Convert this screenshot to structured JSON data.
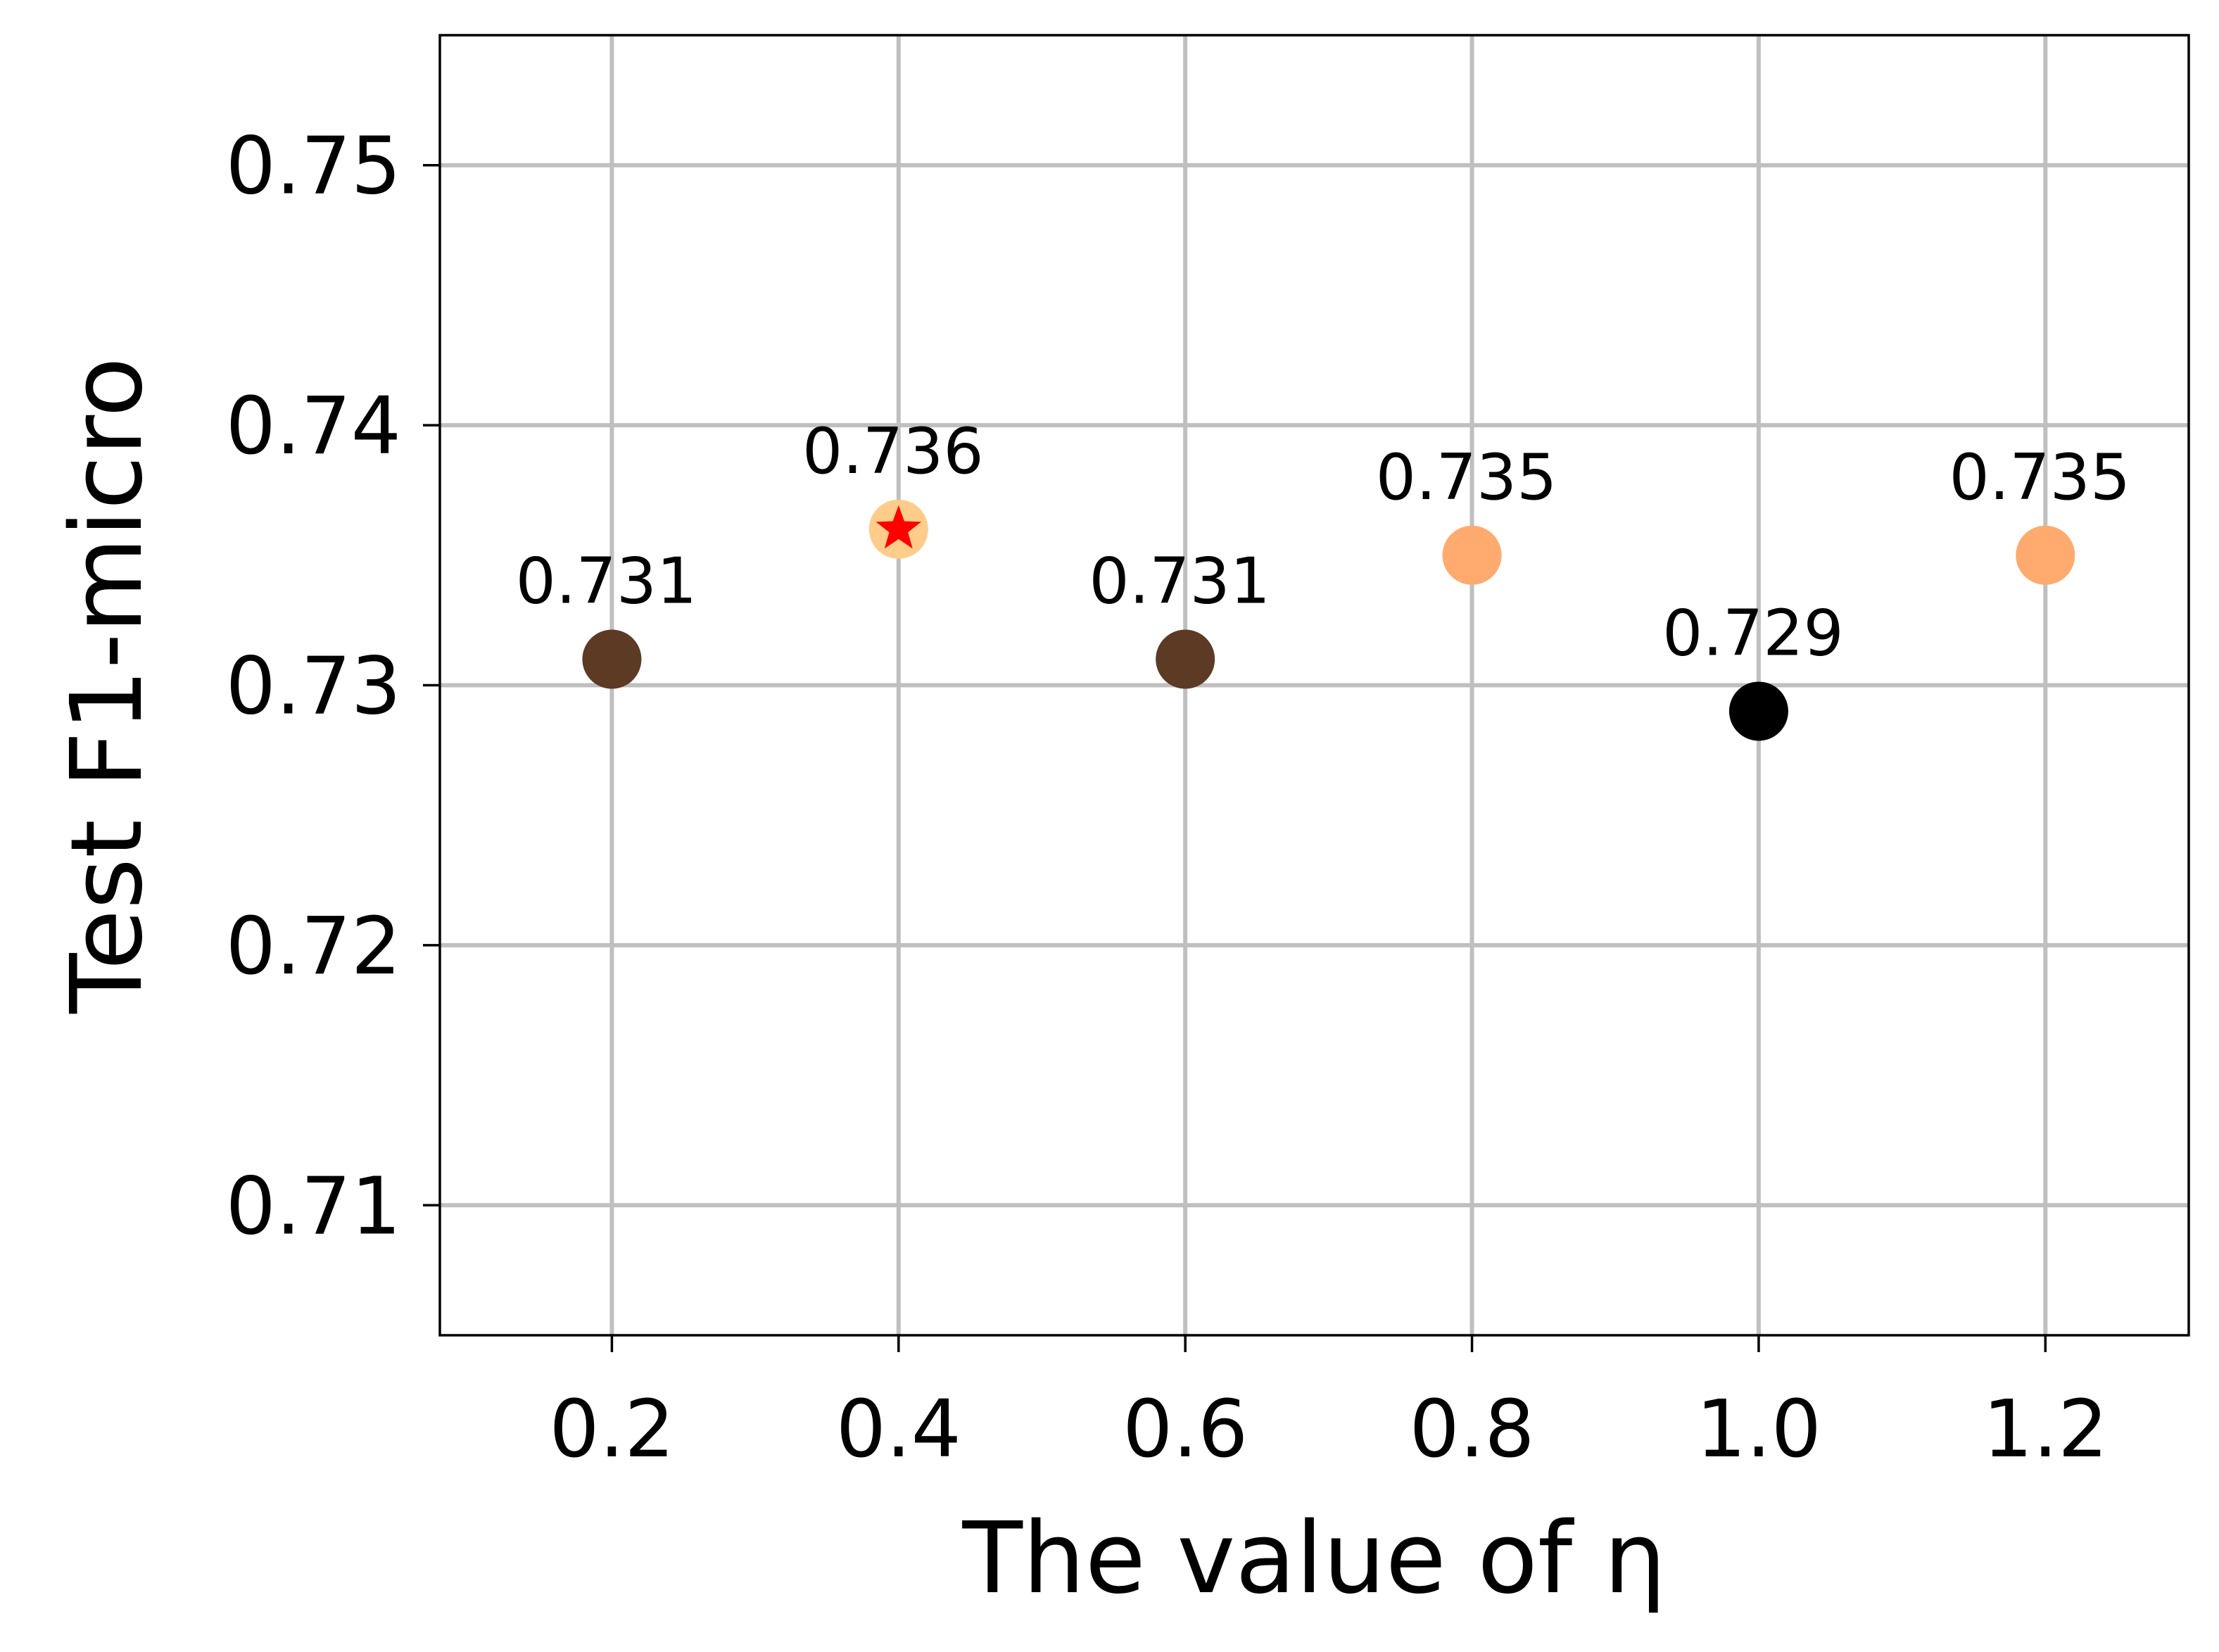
{
  "chart_data": {
    "type": "scatter",
    "title": "",
    "xlabel": "The value of η",
    "ylabel": "Test F1-micro",
    "xlim": [
      0.08,
      1.3
    ],
    "ylim": [
      0.705,
      0.755
    ],
    "xticks": [
      {
        "value": 0.2,
        "label": "0.2"
      },
      {
        "value": 0.4,
        "label": "0.4"
      },
      {
        "value": 0.6,
        "label": "0.6"
      },
      {
        "value": 0.8,
        "label": "0.8"
      },
      {
        "value": 1.0,
        "label": "1.0"
      },
      {
        "value": 1.2,
        "label": "1.2"
      }
    ],
    "yticks": [
      {
        "value": 0.71,
        "label": "0.71"
      },
      {
        "value": 0.72,
        "label": "0.72"
      },
      {
        "value": 0.73,
        "label": "0.73"
      },
      {
        "value": 0.74,
        "label": "0.74"
      },
      {
        "value": 0.75,
        "label": "0.75"
      }
    ],
    "grid": true,
    "legend": "none",
    "points": [
      {
        "x": 0.2,
        "y": 0.731,
        "label": "0.731",
        "color": "#5c3a24"
      },
      {
        "x": 0.4,
        "y": 0.736,
        "label": "0.736",
        "color": "#ffcc8a",
        "best": true
      },
      {
        "x": 0.6,
        "y": 0.731,
        "label": "0.731",
        "color": "#5c3a24"
      },
      {
        "x": 0.8,
        "y": 0.735,
        "label": "0.735",
        "color": "#ffaa6e"
      },
      {
        "x": 1.0,
        "y": 0.729,
        "label": "0.729",
        "color": "#000000"
      },
      {
        "x": 1.2,
        "y": 0.735,
        "label": "0.735",
        "color": "#ffaa6e"
      }
    ],
    "best_marker": {
      "shape": "star",
      "color": "#ff0000"
    }
  }
}
